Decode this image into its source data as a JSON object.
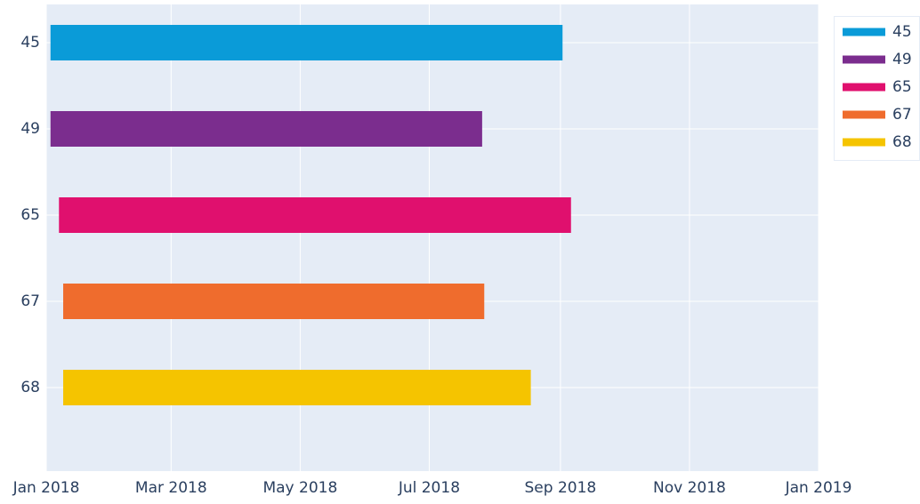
{
  "chart_data": {
    "type": "timeline",
    "categories": [
      "45",
      "49",
      "65",
      "67",
      "68"
    ],
    "series": [
      {
        "name": "45",
        "color": "#0a9bd8",
        "start": "2018-01-03",
        "end": "2018-09-02"
      },
      {
        "name": "49",
        "color": "#7b2d8e",
        "start": "2018-01-03",
        "end": "2018-07-26"
      },
      {
        "name": "65",
        "color": "#e0106e",
        "start": "2018-01-07",
        "end": "2018-09-06"
      },
      {
        "name": "67",
        "color": "#ef6c2d",
        "start": "2018-01-09",
        "end": "2018-07-27"
      },
      {
        "name": "68",
        "color": "#f5c400",
        "start": "2018-01-09",
        "end": "2018-08-18"
      }
    ],
    "xlim": [
      "2018-01-01",
      "2019-01-01"
    ],
    "xticks": [
      {
        "value": "2018-01-01",
        "label": "Jan 2018"
      },
      {
        "value": "2018-03-01",
        "label": "Mar 2018"
      },
      {
        "value": "2018-05-01",
        "label": "May 2018"
      },
      {
        "value": "2018-07-01",
        "label": "Jul 2018"
      },
      {
        "value": "2018-09-01",
        "label": "Sep 2018"
      },
      {
        "value": "2018-11-01",
        "label": "Nov 2018"
      },
      {
        "value": "2019-01-01",
        "label": "Jan 2019"
      }
    ],
    "grid": true,
    "legend": "upper right"
  }
}
